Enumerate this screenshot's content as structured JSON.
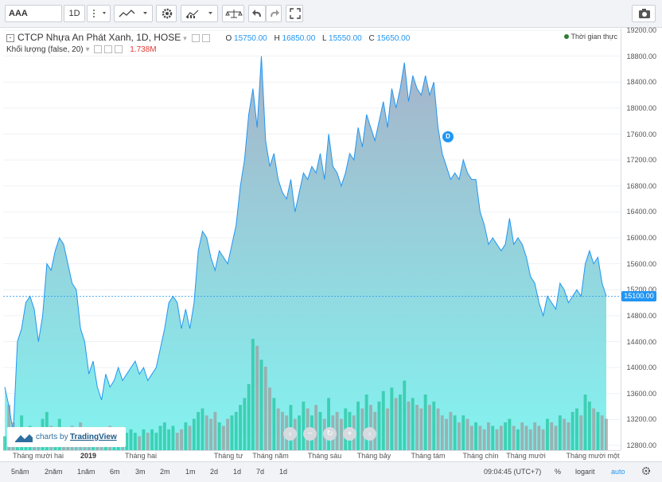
{
  "toolbar": {
    "symbol": "AAA",
    "interval": "1D"
  },
  "legend": {
    "title": "CTCP Nhựa An Phát Xanh, 1D, HOSE",
    "o_label": "O",
    "o_value": "15750.00",
    "h_label": "H",
    "h_value": "16850.00",
    "l_label": "L",
    "l_value": "15550.00",
    "c_label": "C",
    "c_value": "15650.00",
    "volume_label": "Khối lượng (false, 20)",
    "volume_value": "1.738M"
  },
  "realtime_label": "Thời gian thực",
  "current_price_label": "15100.00",
  "marker_label": "D",
  "watermark": {
    "prefix": "charts by",
    "brand": "TradingView"
  },
  "bottom_bar": {
    "ranges": [
      "5năm",
      "2năm",
      "1năm",
      "6m",
      "3m",
      "2m",
      "1m",
      "2d",
      "1d",
      "7d",
      "1d"
    ],
    "time": "09:04:45 (UTC+7)",
    "percent": "%",
    "log": "logarit",
    "auto": "auto"
  },
  "colors": {
    "line": "#2196f3",
    "area_top": "#a7b3c9",
    "area_bottom": "#83f3f0",
    "volume_up": "#26c6a0",
    "volume_down": "#9e9e9e"
  },
  "icons": [
    "chart-type-icon",
    "gear-icon",
    "indicators-icon",
    "compare-icon",
    "undo-icon",
    "redo-icon",
    "fullscreen-icon",
    "camera-icon"
  ],
  "chart_data": {
    "type": "area",
    "title": "CTCP Nhựa An Phát Xanh, 1D, HOSE",
    "ylim": [
      12800,
      19200
    ],
    "yticks": [
      12800,
      13200,
      13600,
      14000,
      14400,
      14800,
      15200,
      15600,
      16000,
      16400,
      16800,
      17200,
      17600,
      18000,
      18400,
      18800,
      19200
    ],
    "xticks": [
      {
        "label": "Tháng mười hai",
        "bold": false
      },
      {
        "label": "2019",
        "bold": true
      },
      {
        "label": "Tháng hai",
        "bold": false
      },
      {
        "label": "Tháng tư",
        "bold": false
      },
      {
        "label": "Tháng năm",
        "bold": false
      },
      {
        "label": "Tháng sáu",
        "bold": false
      },
      {
        "label": "Tháng bảy",
        "bold": false
      },
      {
        "label": "Tháng tám",
        "bold": false
      },
      {
        "label": "Tháng chín",
        "bold": false
      },
      {
        "label": "Tháng mười",
        "bold": false
      },
      {
        "label": "Tháng mười một",
        "bold": false
      }
    ],
    "close_prices": [
      13700,
      13400,
      13000,
      14400,
      14600,
      15000,
      15100,
      14900,
      14400,
      14800,
      15600,
      15500,
      15800,
      16000,
      15900,
      15600,
      15300,
      15200,
      14600,
      14400,
      13900,
      14100,
      13700,
      13500,
      13900,
      13700,
      13800,
      14000,
      13800,
      13900,
      14000,
      14100,
      13900,
      14000,
      13800,
      13900,
      14000,
      14300,
      14600,
      15000,
      15100,
      15000,
      14600,
      14900,
      14600,
      15000,
      15800,
      16100,
      16000,
      15700,
      15500,
      15800,
      15700,
      15600,
      15900,
      16200,
      16800,
      17200,
      17900,
      18300,
      17700,
      18800,
      17500,
      17100,
      17300,
      16900,
      16700,
      16600,
      16900,
      16400,
      16700,
      17000,
      16900,
      17100,
      17000,
      17300,
      16900,
      17600,
      17100,
      17000,
      16800,
      17000,
      17300,
      17200,
      17700,
      17400,
      17900,
      17700,
      17500,
      17800,
      18100,
      17700,
      18300,
      18000,
      18300,
      18700,
      18100,
      18500,
      18300,
      18200,
      18500,
      18200,
      18400,
      17700,
      17300,
      17100,
      16900,
      17000,
      16900,
      17200,
      17000,
      16900,
      16900,
      16400,
      16200,
      15900,
      16000,
      15900,
      15800,
      15900,
      16300,
      15900,
      16000,
      15900,
      15700,
      15400,
      15300,
      15000,
      14800,
      15100,
      15000,
      14900,
      15300,
      15200,
      15000,
      15100,
      15200,
      15100,
      15600,
      15800,
      15600,
      15700,
      15300,
      15100
    ],
    "volume_series": {
      "name": "Khối lượng",
      "values": [
        0.4,
        1.3,
        0.8,
        0.6,
        1.0,
        0.5,
        0.7,
        0.6,
        0.5,
        0.9,
        1.1,
        0.7,
        0.6,
        0.9,
        0.5,
        0.6,
        0.7,
        0.5,
        0.8,
        0.6,
        0.5,
        0.6,
        0.5,
        0.4,
        0.6,
        0.7,
        0.5,
        0.6,
        0.4,
        0.5,
        0.6,
        0.5,
        0.4,
        0.6,
        0.5,
        0.6,
        0.5,
        0.7,
        0.8,
        0.6,
        0.7,
        0.5,
        0.6,
        0.8,
        0.7,
        0.9,
        1.1,
        1.2,
        1.0,
        0.9,
        1.1,
        0.8,
        0.7,
        0.9,
        1.0,
        1.1,
        1.3,
        1.5,
        1.9,
        3.2,
        3.0,
        2.6,
        2.4,
        1.8,
        1.5,
        1.2,
        1.1,
        1.0,
        1.3,
        0.9,
        1.0,
        1.4,
        1.2,
        1.0,
        1.3,
        1.1,
        0.9,
        1.5,
        1.0,
        1.1,
        0.9,
        1.2,
        1.1,
        1.0,
        1.4,
        1.2,
        1.6,
        1.3,
        1.1,
        1.4,
        1.7,
        1.2,
        1.8,
        1.5,
        1.6,
        2.0,
        1.4,
        1.5,
        1.3,
        1.2,
        1.6,
        1.3,
        1.4,
        1.2,
        1.0,
        0.9,
        1.1,
        1.0,
        0.8,
        1.0,
        0.9,
        0.7,
        0.8,
        0.7,
        0.6,
        0.8,
        0.7,
        0.6,
        0.7,
        0.8,
        0.9,
        0.7,
        0.6,
        0.8,
        0.7,
        0.6,
        0.8,
        0.7,
        0.6,
        0.9,
        0.8,
        0.7,
        1.0,
        0.9,
        0.8,
        1.1,
        1.2,
        1.0,
        1.6,
        1.4,
        1.2,
        1.1,
        1.0,
        0.9
      ]
    }
  }
}
